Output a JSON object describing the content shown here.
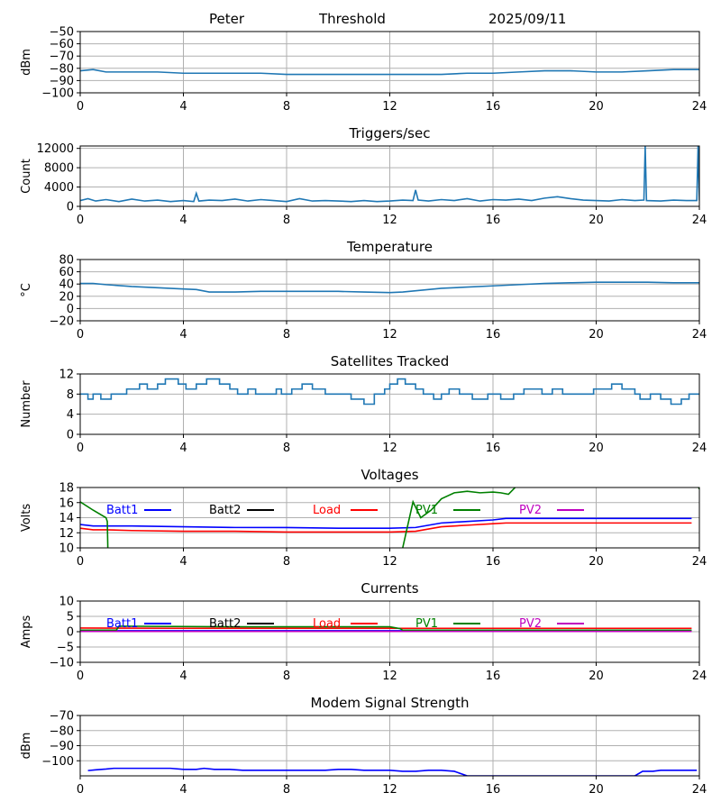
{
  "header": {
    "station": "Peter",
    "mode": "Threshold",
    "date": "2025/09/11"
  },
  "colors": {
    "series_blue": "#1f77b4",
    "grid": "#b0b0b0",
    "batt1": "#0000ff",
    "batt2": "#000000",
    "load": "#ff0000",
    "pv1": "#008000",
    "pv2": "#bf00bf"
  },
  "chart_data": [
    {
      "id": "rssi",
      "type": "line",
      "title": "",
      "xlabel": "",
      "ylabel": "dBm",
      "xlim": [
        0,
        24
      ],
      "ylim": [
        -100,
        -50
      ],
      "xticks": [
        0,
        4,
        8,
        12,
        16,
        20,
        24
      ],
      "yticks": [
        -100,
        -90,
        -80,
        -70,
        -60,
        -50
      ],
      "grid": true,
      "series": [
        {
          "color": "#1f77b4",
          "x": [
            0,
            0.5,
            1,
            2,
            3,
            4,
            5,
            6,
            7,
            8,
            9,
            10,
            11,
            12,
            13,
            14,
            15,
            16,
            17,
            18,
            19,
            20,
            21,
            22,
            23,
            24
          ],
          "y": [
            -82,
            -81,
            -83,
            -83,
            -83,
            -84,
            -84,
            -84,
            -84,
            -85,
            -85,
            -85,
            -85,
            -85,
            -85,
            -85,
            -84,
            -84,
            -83,
            -82,
            -82,
            -83,
            -83,
            -82,
            -81,
            -81
          ]
        }
      ]
    },
    {
      "id": "triggers",
      "type": "line",
      "title": "Triggers/sec",
      "xlabel": "",
      "ylabel": "Count",
      "xlim": [
        0,
        24
      ],
      "ylim": [
        0,
        12500
      ],
      "xticks": [
        0,
        4,
        8,
        12,
        16,
        20,
        24
      ],
      "yticks": [
        0,
        4000,
        8000,
        12000
      ],
      "grid": true,
      "series": [
        {
          "color": "#1f77b4",
          "x": [
            0,
            0.3,
            0.6,
            1,
            1.5,
            2,
            2.5,
            3,
            3.5,
            4,
            4.4,
            4.5,
            4.6,
            5,
            5.5,
            6,
            6.5,
            7,
            7.5,
            8,
            8.5,
            9,
            9.5,
            10,
            10.5,
            11,
            11.5,
            12,
            12.5,
            12.9,
            13,
            13.1,
            13.5,
            14,
            14.5,
            15,
            15.5,
            16,
            16.5,
            17,
            17.5,
            18,
            18.5,
            19,
            19.5,
            20,
            20.5,
            21,
            21.5,
            21.85,
            21.9,
            21.95,
            22.5,
            23,
            23.5,
            23.9,
            23.95,
            24
          ],
          "y": [
            1200,
            1600,
            1100,
            1400,
            1000,
            1500,
            1100,
            1300,
            1000,
            1200,
            1000,
            2700,
            1100,
            1300,
            1200,
            1500,
            1100,
            1400,
            1200,
            1000,
            1600,
            1100,
            1200,
            1100,
            1000,
            1200,
            1000,
            1100,
            1300,
            1200,
            3400,
            1300,
            1100,
            1400,
            1200,
            1600,
            1100,
            1400,
            1300,
            1500,
            1200,
            1700,
            2000,
            1600,
            1300,
            1200,
            1100,
            1400,
            1200,
            1300,
            12500,
            1200,
            1100,
            1300,
            1200,
            1200,
            12500,
            1200
          ]
        }
      ]
    },
    {
      "id": "temperature",
      "type": "line",
      "title": "Temperature",
      "xlabel": "",
      "ylabel": "°C",
      "xlim": [
        0,
        24
      ],
      "ylim": [
        -20,
        80
      ],
      "xticks": [
        0,
        4,
        8,
        12,
        16,
        20,
        24
      ],
      "yticks": [
        -20,
        0,
        20,
        40,
        60,
        80
      ],
      "grid": true,
      "series": [
        {
          "color": "#1f77b4",
          "x": [
            0,
            0.5,
            1,
            2,
            3,
            4,
            4.5,
            5,
            6,
            7,
            8,
            9,
            10,
            11,
            12,
            12.5,
            13,
            14,
            15,
            16,
            17,
            18,
            19,
            20,
            21,
            22,
            23,
            24
          ],
          "y": [
            41,
            41,
            39,
            36,
            34,
            32,
            31,
            27,
            27,
            28,
            28,
            28,
            28,
            27,
            26,
            27,
            29,
            33,
            35,
            37,
            39,
            41,
            42,
            43,
            43,
            43,
            42,
            42
          ]
        }
      ]
    },
    {
      "id": "satellites",
      "type": "line",
      "step": true,
      "title": "Satellites Tracked",
      "xlabel": "",
      "ylabel": "Number",
      "xlim": [
        0,
        24
      ],
      "ylim": [
        0,
        12
      ],
      "xticks": [
        0,
        4,
        8,
        12,
        16,
        20,
        24
      ],
      "yticks": [
        0,
        4,
        8,
        12
      ],
      "grid": true,
      "series": [
        {
          "color": "#1f77b4",
          "x": [
            0,
            0.3,
            0.5,
            0.8,
            1.2,
            1.8,
            2.3,
            2.6,
            3.0,
            3.3,
            3.8,
            4.1,
            4.5,
            4.9,
            5.4,
            5.8,
            6.1,
            6.5,
            6.8,
            7.2,
            7.6,
            7.8,
            8.2,
            8.6,
            9.0,
            9.5,
            10.0,
            10.5,
            11.0,
            11.4,
            11.8,
            12.0,
            12.3,
            12.6,
            13.0,
            13.3,
            13.7,
            14.0,
            14.3,
            14.7,
            15.2,
            15.5,
            15.8,
            16.3,
            16.8,
            17.2,
            17.5,
            17.9,
            18.3,
            18.7,
            19.0,
            19.5,
            19.9,
            20.3,
            20.6,
            21.0,
            21.5,
            21.7,
            22.1,
            22.5,
            22.9,
            23.3,
            23.6,
            24
          ],
          "y": [
            8,
            7,
            8,
            7,
            8,
            9,
            10,
            9,
            10,
            11,
            10,
            9,
            10,
            11,
            10,
            9,
            8,
            9,
            8,
            8,
            9,
            8,
            9,
            10,
            9,
            8,
            8,
            7,
            6,
            8,
            9,
            10,
            11,
            10,
            9,
            8,
            7,
            8,
            9,
            8,
            7,
            7,
            8,
            7,
            8,
            9,
            9,
            8,
            9,
            8,
            8,
            8,
            9,
            9,
            10,
            9,
            8,
            7,
            8,
            7,
            6,
            7,
            8,
            8
          ]
        }
      ]
    },
    {
      "id": "voltages",
      "type": "line",
      "title": "Voltages",
      "xlabel": "",
      "ylabel": "Volts",
      "xlim": [
        0,
        24
      ],
      "ylim": [
        10,
        18
      ],
      "xticks": [
        0,
        4,
        8,
        12,
        16,
        20,
        24
      ],
      "yticks": [
        10,
        12,
        14,
        16,
        18
      ],
      "grid": true,
      "legend": "top-inline",
      "series": [
        {
          "name": "Batt1",
          "color": "#0000ff",
          "x": [
            0,
            0.5,
            1,
            2,
            4,
            6,
            8,
            10,
            12,
            13,
            13.5,
            14,
            15,
            16,
            16.5,
            18,
            20,
            22,
            23.7
          ],
          "y": [
            13.1,
            12.9,
            12.9,
            12.9,
            12.8,
            12.7,
            12.7,
            12.6,
            12.6,
            12.7,
            13.0,
            13.3,
            13.5,
            13.7,
            13.9,
            13.9,
            13.9,
            13.9,
            13.9
          ]
        },
        {
          "name": "Batt2",
          "color": "#000000",
          "x": [],
          "y": []
        },
        {
          "name": "Load",
          "color": "#ff0000",
          "x": [
            0,
            0.5,
            1,
            2,
            4,
            6,
            8,
            10,
            12,
            13,
            13.5,
            14,
            15,
            16,
            16.5,
            18,
            20,
            22,
            23.7
          ],
          "y": [
            12.6,
            12.4,
            12.4,
            12.3,
            12.2,
            12.2,
            12.1,
            12.1,
            12.1,
            12.2,
            12.5,
            12.8,
            13.0,
            13.2,
            13.3,
            13.3,
            13.3,
            13.3,
            13.3
          ]
        },
        {
          "name": "PV1",
          "color": "#008000",
          "x": [
            0,
            0.5,
            1,
            1.05,
            1.1,
            12.2,
            12.5,
            12.9,
            13.2,
            13.6,
            14,
            14.5,
            15,
            15.5,
            16,
            16.3,
            16.6,
            17,
            23.9,
            24
          ],
          "y": [
            16.1,
            15.0,
            14.0,
            13.5,
            5,
            5,
            10,
            16.1,
            14.0,
            15.0,
            16.5,
            17.3,
            17.5,
            17.3,
            17.4,
            17.3,
            17.1,
            18.5,
            18.5,
            17.8
          ]
        },
        {
          "name": "PV2",
          "color": "#bf00bf",
          "x": [],
          "y": []
        }
      ]
    },
    {
      "id": "currents",
      "type": "line",
      "title": "Currents",
      "xlabel": "",
      "ylabel": "Amps",
      "xlim": [
        0,
        24
      ],
      "ylim": [
        -10,
        10
      ],
      "xticks": [
        0,
        4,
        8,
        12,
        16,
        20,
        24
      ],
      "yticks": [
        -10,
        -5,
        0,
        5,
        10
      ],
      "grid": true,
      "legend": "top-inline",
      "series": [
        {
          "name": "Batt1",
          "color": "#0000ff",
          "x": [
            0,
            4,
            8,
            12,
            16,
            20,
            23.7
          ],
          "y": [
            0.3,
            0.3,
            0.3,
            0.3,
            0.3,
            0.3,
            0.3
          ]
        },
        {
          "name": "Batt2",
          "color": "#000000",
          "x": [],
          "y": []
        },
        {
          "name": "Load",
          "color": "#ff0000",
          "x": [
            0,
            4,
            8,
            12,
            16,
            20,
            23.7
          ],
          "y": [
            1.2,
            1.1,
            1.1,
            1.1,
            1.1,
            1.1,
            1.1
          ]
        },
        {
          "name": "PV1",
          "color": "#008000",
          "x": [
            0,
            1.4,
            1.5,
            6,
            10,
            12,
            12.4,
            12.5,
            23.7
          ],
          "y": [
            0.5,
            0.5,
            1.8,
            1.6,
            1.6,
            1.6,
            1.0,
            0.5,
            0.5
          ]
        },
        {
          "name": "PV2",
          "color": "#bf00bf",
          "x": [
            0,
            4,
            8,
            12,
            16,
            20,
            23.7
          ],
          "y": [
            0.1,
            0.1,
            0.1,
            0.1,
            0.1,
            0.1,
            0.1
          ]
        }
      ]
    },
    {
      "id": "modem",
      "type": "line",
      "title": "Modem Signal Strength",
      "xlabel": "",
      "ylabel": "dBm",
      "xlim": [
        0,
        24
      ],
      "ylim": [
        -110,
        -70
      ],
      "xticks": [
        0,
        4,
        8,
        12,
        16,
        20,
        24
      ],
      "yticks": [
        -100,
        -90,
        -80,
        -70
      ],
      "grid": true,
      "series": [
        {
          "color": "#0000ff",
          "x": [
            0.3,
            0.6,
            1,
            1.3,
            2,
            3,
            3.5,
            4,
            4.5,
            4.8,
            5.2,
            5.8,
            6.3,
            7,
            8,
            9,
            9.5,
            10,
            10.5,
            11,
            11.5,
            12,
            12.5,
            13,
            13.5,
            14,
            14.5,
            15,
            21.5,
            21.8,
            22.2,
            22.5,
            23,
            23.5,
            23.9
          ],
          "y": [
            -106.5,
            -106,
            -105.5,
            -105,
            -105,
            -105,
            -105,
            -105.7,
            -105.7,
            -105,
            -105.7,
            -105.7,
            -106.3,
            -106.3,
            -106.3,
            -106.3,
            -106.3,
            -105.7,
            -105.7,
            -106.3,
            -106.3,
            -106.3,
            -107,
            -107,
            -106.3,
            -106.3,
            -107,
            -110,
            -110,
            -107,
            -107,
            -106.3,
            -106.3,
            -106.3,
            -106.3
          ]
        }
      ]
    }
  ]
}
